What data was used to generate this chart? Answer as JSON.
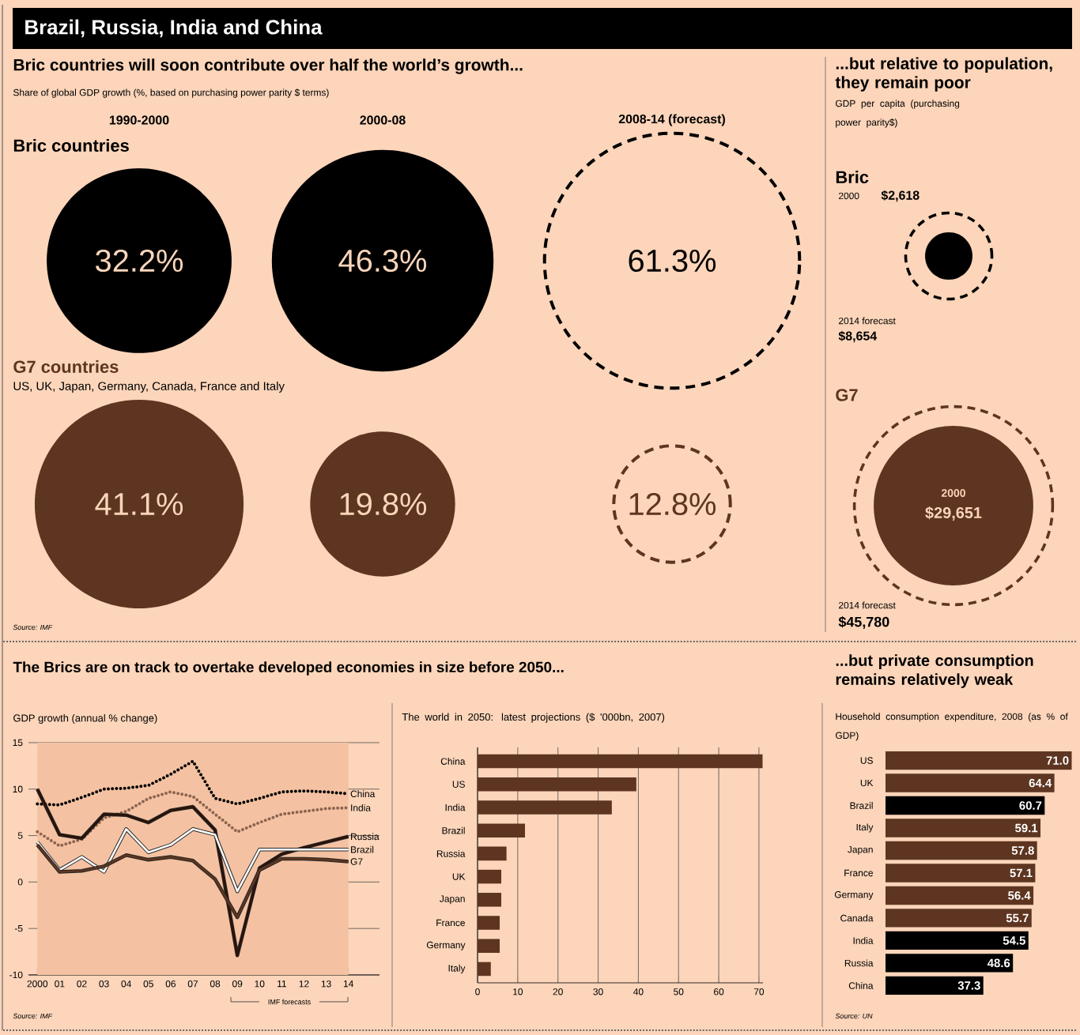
{
  "chart_data": [
    {
      "type": "other",
      "title": "Bric countries will soon contribute over half the world’s growth...",
      "subtitle": "Share of global GDP growth (%, based on purchasing power parity $ terms)",
      "categories": [
        "1990-2000",
        "2000-08",
        "2008-14 (forecast)"
      ],
      "series": [
        {
          "name": "Bric countries",
          "color": "#000000",
          "values": [
            32.2,
            46.3,
            61.3
          ],
          "value_labels": [
            "32.2%",
            "46.3%",
            "61.3%"
          ]
        },
        {
          "name": "G7 countries",
          "color": "#5e3520",
          "values": [
            41.1,
            19.8,
            12.8
          ],
          "value_labels": [
            "41.1%",
            "19.8%",
            "12.8%"
          ]
        }
      ],
      "annotations": [
        "Brazil, Russia, India and China",
        "US, UK, Japan, Germany, Canada, France and Italy",
        "Source: IMF"
      ]
    },
    {
      "type": "other",
      "title": "...but relative to population, they remain poor",
      "subtitle": "GDP per capita (purchasing power parity$)",
      "categories": [
        "2000",
        "2014 forecast"
      ],
      "series": [
        {
          "name": "Bric",
          "color": "#000000",
          "values": [
            2618,
            8654
          ],
          "value_labels": [
            "$2,618",
            "$8,654"
          ]
        },
        {
          "name": "G7",
          "color": "#5e3520",
          "values": [
            29651,
            45780
          ],
          "value_labels": [
            "$29,651",
            "$45,780"
          ]
        }
      ]
    },
    {
      "type": "line",
      "title": "The Brics are on track to overtake developed economies in size before 2050...",
      "ylabel": "GDP growth (annual % change)",
      "x": [
        2000,
        2001,
        2002,
        2003,
        2004,
        2005,
        2006,
        2007,
        2008,
        2009,
        2010,
        2011,
        2012,
        2013,
        2014
      ],
      "xlim": [
        1999.6,
        2015.4
      ],
      "xticks": [
        {
          "value": 2000,
          "label": "2000"
        },
        {
          "value": 2001,
          "label": "01"
        },
        {
          "value": 2002,
          "label": "02"
        },
        {
          "value": 2003,
          "label": "03"
        },
        {
          "value": 2004,
          "label": "04"
        },
        {
          "value": 2005,
          "label": "05"
        },
        {
          "value": 2006,
          "label": "06"
        },
        {
          "value": 2007,
          "label": "07"
        },
        {
          "value": 2008,
          "label": "08"
        },
        {
          "value": 2009,
          "label": "09"
        },
        {
          "value": 2010,
          "label": "10"
        },
        {
          "value": 2011,
          "label": "11"
        },
        {
          "value": 2012,
          "label": "12"
        },
        {
          "value": 2013,
          "label": "13"
        },
        {
          "value": 2014,
          "label": "14"
        }
      ],
      "ylim": [
        -10,
        15
      ],
      "yticks": [
        -10,
        -5,
        0,
        5,
        10,
        15
      ],
      "grid": "y",
      "series": [
        {
          "name": "China",
          "color": "#000000",
          "line_style": "dotted",
          "values": [
            8.4,
            8.3,
            9.1,
            10.0,
            10.1,
            10.4,
            11.6,
            13.0,
            9.0,
            8.4,
            9.0,
            9.7,
            9.8,
            9.7,
            9.5
          ]
        },
        {
          "name": "India",
          "color": "#8c6450",
          "line_style": "dotted",
          "values": [
            5.4,
            3.9,
            4.6,
            6.9,
            7.6,
            9.0,
            9.7,
            9.2,
            7.3,
            5.4,
            6.4,
            7.3,
            7.6,
            7.9,
            8.0
          ]
        },
        {
          "name": "Russia",
          "color": "#2b1208",
          "line_style": "solid",
          "values": [
            10.0,
            5.1,
            4.7,
            7.3,
            7.2,
            6.4,
            7.7,
            8.1,
            5.6,
            -7.9,
            1.5,
            3.0,
            3.7,
            4.3,
            4.9
          ]
        },
        {
          "name": "Brazil",
          "color": "#ffffff",
          "line_style": "solid",
          "values": [
            4.3,
            1.3,
            2.7,
            1.1,
            5.7,
            3.2,
            4.0,
            5.7,
            5.1,
            -1.0,
            3.5,
            3.5,
            3.5,
            3.5,
            3.5
          ]
        },
        {
          "name": "G7",
          "color": "#5e3520",
          "line_style": "solid",
          "values": [
            4.0,
            1.1,
            1.2,
            1.7,
            2.9,
            2.4,
            2.7,
            2.3,
            0.3,
            -3.8,
            1.3,
            2.5,
            2.5,
            2.4,
            2.2
          ]
        }
      ],
      "bands": [
        {
          "axis": "x",
          "from": 2000,
          "to": 2014,
          "color": "#f4c2a2"
        }
      ],
      "annotations": [
        "IMF forecasts",
        "Source: IMF"
      ]
    },
    {
      "type": "bar",
      "orientation": "horizontal",
      "title": "The world in 2050: latest projections ($ '000bn, 2007)",
      "categories": [
        "China",
        "US",
        "India",
        "Brazil",
        "Russia",
        "UK",
        "Japan",
        "France",
        "Germany",
        "Italy"
      ],
      "values": [
        70.9,
        39.5,
        33.4,
        11.8,
        7.2,
        5.9,
        5.9,
        5.5,
        5.5,
        3.3
      ],
      "color": "#5e3520",
      "xlim": [
        0,
        71
      ],
      "xticks": [
        0,
        10,
        20,
        30,
        40,
        50,
        60,
        70
      ],
      "grid": "x"
    },
    {
      "type": "bar",
      "orientation": "horizontal",
      "title": "...but private consumption remains relatively weak",
      "subtitle": "Household consumption expenditure, 2008 (as % of GDP)",
      "categories": [
        "US",
        "UK",
        "Brazil",
        "Italy",
        "Japan",
        "France",
        "Germany",
        "Canada",
        "India",
        "Russia",
        "China"
      ],
      "values": [
        71.0,
        64.4,
        60.7,
        59.1,
        57.8,
        57.1,
        56.4,
        55.7,
        54.5,
        48.6,
        37.3
      ],
      "value_labels": [
        "71.0",
        "64.4",
        "60.7",
        "59.1",
        "57.8",
        "57.1",
        "56.4",
        "55.7",
        "54.5",
        "48.6",
        "37.3"
      ],
      "colors": [
        "#5e3520",
        "#5e3520",
        "#000000",
        "#5e3520",
        "#5e3520",
        "#5e3520",
        "#5e3520",
        "#5e3520",
        "#000000",
        "#000000",
        "#000000"
      ],
      "annotations": [
        "Source: UN"
      ]
    }
  ]
}
